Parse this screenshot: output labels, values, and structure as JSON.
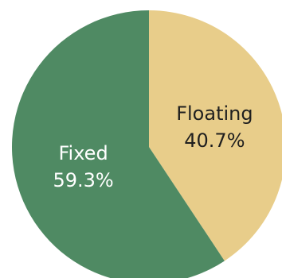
{
  "chart_data": {
    "type": "pie",
    "title": "",
    "start_angle_deg": 0,
    "direction": "clockwise",
    "slices": [
      {
        "label": "Floating",
        "value_label": "40.7%",
        "value": 40.7,
        "color": "#e8cd8a",
        "text_color": "#1f1f1f"
      },
      {
        "label": "Fixed",
        "value_label": "59.3%",
        "value": 59.3,
        "color": "#4f8a63",
        "text_color": "#ffffff"
      }
    ]
  }
}
